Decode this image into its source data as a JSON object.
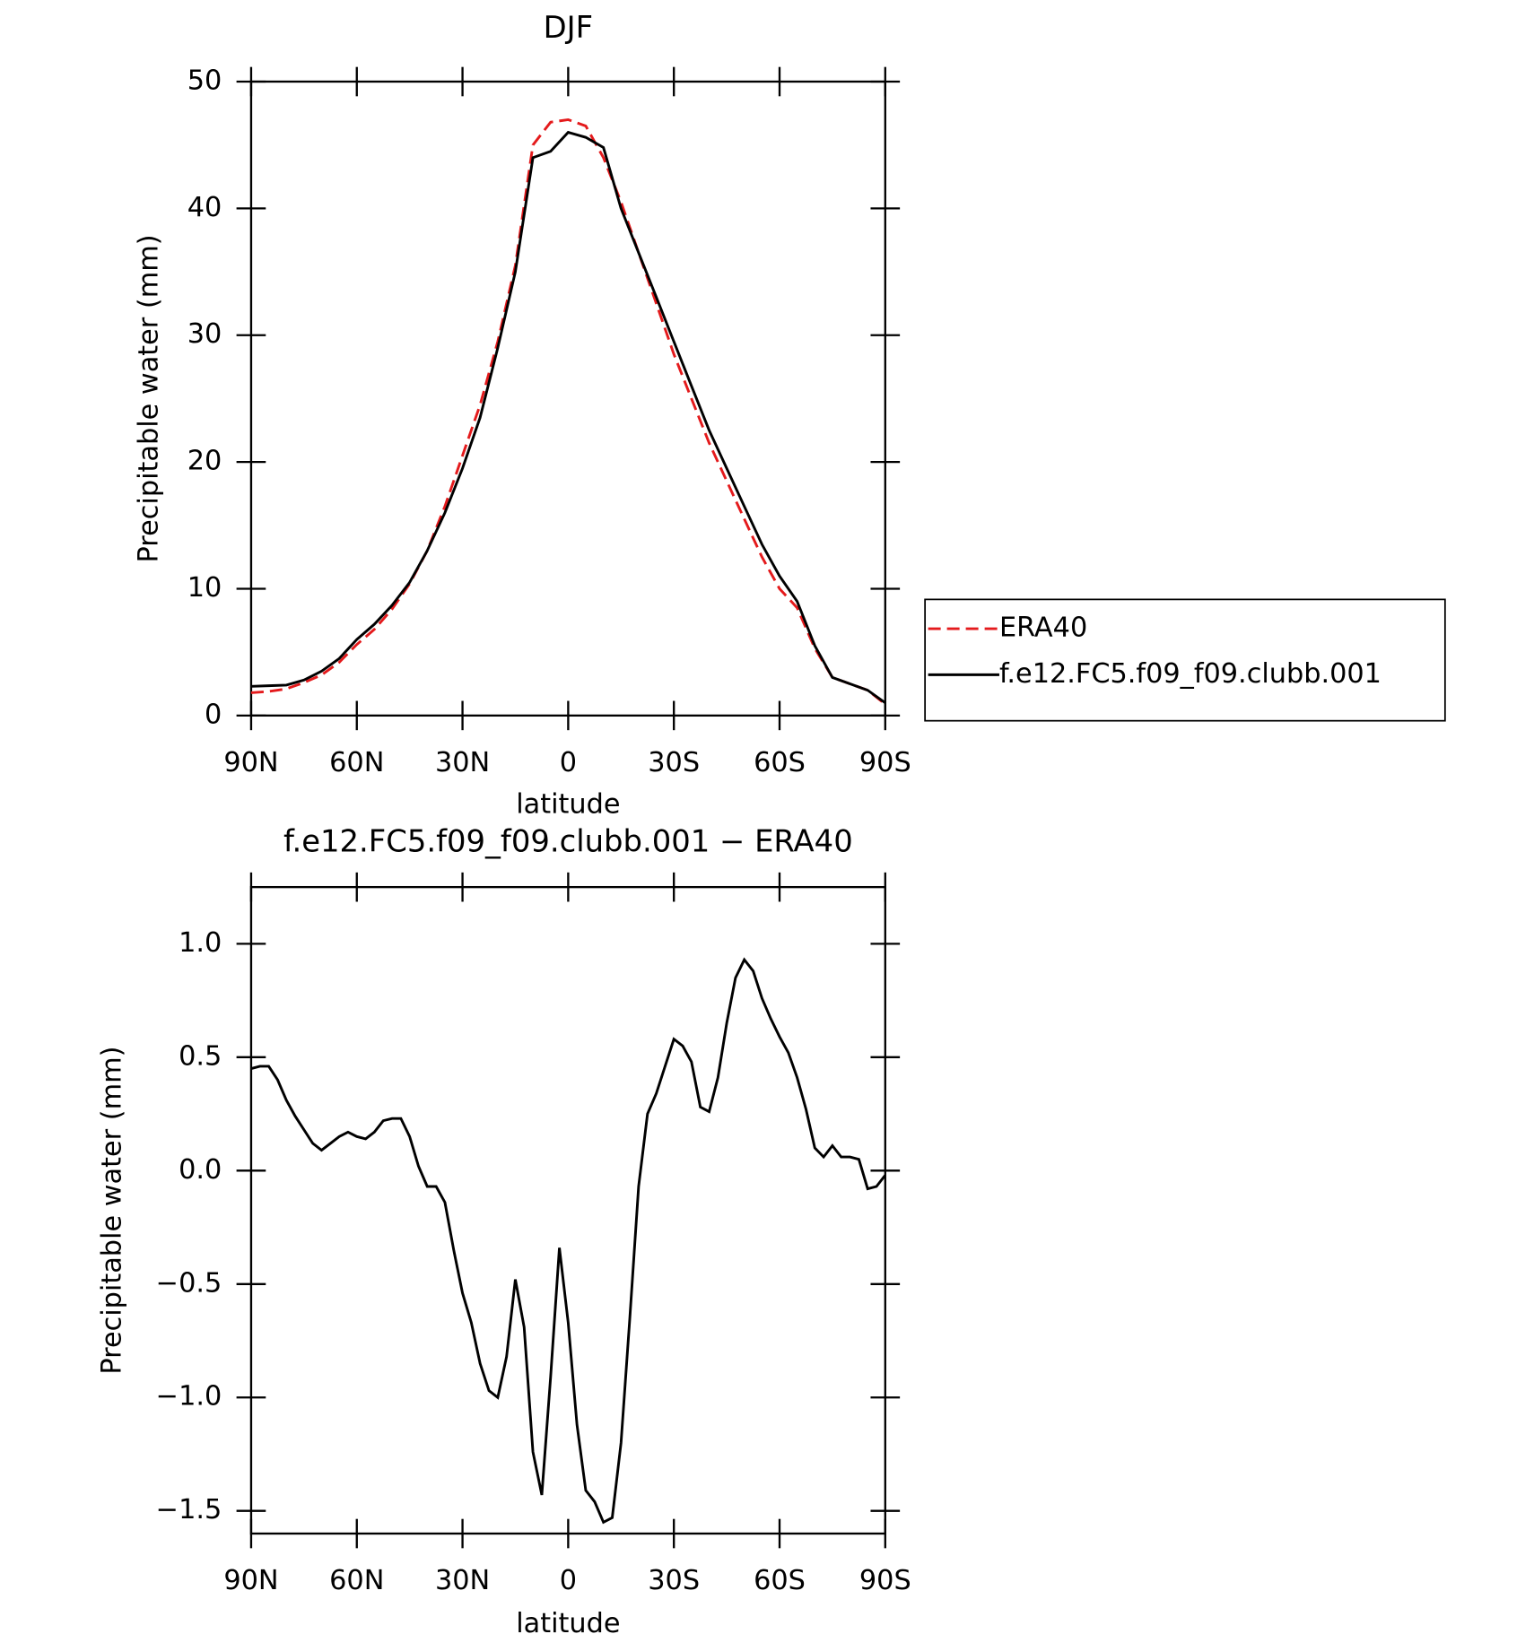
{
  "chart_data": [
    {
      "type": "line",
      "title": "DJF",
      "xlabel": "latitude",
      "ylabel": "Precipitable water (mm)",
      "x": [
        90,
        85,
        80,
        75,
        70,
        65,
        60,
        55,
        50,
        45,
        40,
        35,
        30,
        25,
        20,
        15,
        10,
        5,
        0,
        -5,
        -10,
        -15,
        -20,
        -25,
        -30,
        -35,
        -40,
        -45,
        -50,
        -55,
        -60,
        -65,
        -70,
        -75,
        -80,
        -85,
        -90
      ],
      "series": [
        {
          "name": "ERA40",
          "color": "#e41a1c",
          "line_style": "dashed",
          "values": [
            1.8,
            1.9,
            2.1,
            2.6,
            3.2,
            4.2,
            5.6,
            6.8,
            8.4,
            10.4,
            13,
            16.5,
            20.5,
            24.5,
            29.5,
            35.5,
            45,
            46.8,
            47,
            46.5,
            44,
            40.5,
            36.5,
            32.5,
            28.5,
            25,
            21.5,
            18.5,
            15.5,
            12.5,
            10,
            8.5,
            5.3,
            3,
            2.5,
            2,
            0.9
          ]
        },
        {
          "name": "f.e12.FC5.f09_f09.clubb.001",
          "color": "#000000",
          "line_style": "solid",
          "values": [
            2.3,
            2.35,
            2.4,
            2.8,
            3.5,
            4.5,
            6,
            7.2,
            8.7,
            10.5,
            13,
            16,
            19.5,
            23.5,
            29,
            35,
            44,
            44.5,
            46,
            45.6,
            44.8,
            40,
            36.5,
            33,
            29.5,
            26,
            22.5,
            19.5,
            16.5,
            13.5,
            11,
            9,
            5.5,
            3,
            2.5,
            2,
            1.0
          ]
        }
      ],
      "xlim": [
        90,
        -90
      ],
      "xticks": [
        {
          "value": 90,
          "label": "90N"
        },
        {
          "value": 60,
          "label": "60N"
        },
        {
          "value": 30,
          "label": "30N"
        },
        0,
        {
          "value": -30,
          "label": "30S"
        },
        {
          "value": -60,
          "label": "60S"
        },
        {
          "value": -90,
          "label": "90S"
        }
      ],
      "ylim": [
        0,
        50
      ],
      "yticks": [
        0,
        10,
        20,
        30,
        40,
        50
      ],
      "legend": "outside-right"
    },
    {
      "type": "line",
      "title": "f.e12.FC5.f09_f09.clubb.001 − ERA40",
      "xlabel": "latitude",
      "ylabel": "Precipitable water (mm)",
      "x": [
        90,
        87.5,
        85,
        82.5,
        80,
        77.5,
        75,
        72.5,
        70,
        67.5,
        65,
        62.5,
        60,
        57.5,
        55,
        52.5,
        50,
        47.5,
        45,
        42.5,
        40,
        37.5,
        35,
        32.5,
        30,
        27.5,
        25,
        22.5,
        20,
        17.5,
        15,
        12.5,
        10,
        7.5,
        5,
        2.5,
        0,
        -2.5,
        -5,
        -7.5,
        -10,
        -12.5,
        -15,
        -17.5,
        -20,
        -22.5,
        -25,
        -27.5,
        -30,
        -32.5,
        -35,
        -37.5,
        -40,
        -42.5,
        -45,
        -47.5,
        -50,
        -52.5,
        -55,
        -57.5,
        -60,
        -62.5,
        -65,
        -67.5,
        -70,
        -72.5,
        -75,
        -77.5,
        -80,
        -82.5,
        -85,
        -87.5,
        -90
      ],
      "series": [
        {
          "name": "f.e12.FC5.f09_f09.clubb.001 − ERA40",
          "color": "#000000",
          "line_style": "solid",
          "values": [
            0.45,
            0.46,
            0.46,
            0.4,
            0.31,
            0.24,
            0.18,
            0.12,
            0.09,
            0.12,
            0.15,
            0.17,
            0.15,
            0.14,
            0.17,
            0.22,
            0.23,
            0.23,
            0.15,
            0.02,
            -0.07,
            -0.07,
            -0.14,
            -0.35,
            -0.54,
            -0.67,
            -0.85,
            -0.97,
            -1.0,
            -0.82,
            -0.48,
            -0.69,
            -1.24,
            -1.43,
            -0.91,
            -0.34,
            -0.67,
            -1.12,
            -1.41,
            -1.46,
            -1.55,
            -1.53,
            -1.2,
            -0.65,
            -0.07,
            0.25,
            0.34,
            0.46,
            0.58,
            0.55,
            0.48,
            0.28,
            0.26,
            0.41,
            0.65,
            0.85,
            0.93,
            0.88,
            0.76,
            0.67,
            0.59,
            0.52,
            0.41,
            0.27,
            0.1,
            0.06,
            0.11,
            0.06,
            0.06,
            0.05,
            -0.08,
            -0.07,
            -0.02
          ]
        }
      ],
      "xlim": [
        90,
        -90
      ],
      "xticks": [
        {
          "value": 90,
          "label": "90N"
        },
        {
          "value": 60,
          "label": "60N"
        },
        {
          "value": 30,
          "label": "30N"
        },
        0,
        {
          "value": -30,
          "label": "30S"
        },
        {
          "value": -60,
          "label": "60S"
        },
        {
          "value": -90,
          "label": "90S"
        }
      ],
      "ylim": [
        -1.6,
        1.25
      ],
      "yticks": [
        {
          "value": -1.5,
          "label": "−1.5"
        },
        {
          "value": -1.0,
          "label": "−1.0"
        },
        {
          "value": -0.5,
          "label": "−0.5"
        },
        {
          "value": 0,
          "label": "0.0"
        },
        {
          "value": 0.5,
          "label": "0.5"
        },
        {
          "value": 1.0,
          "label": "1.0"
        }
      ]
    }
  ]
}
